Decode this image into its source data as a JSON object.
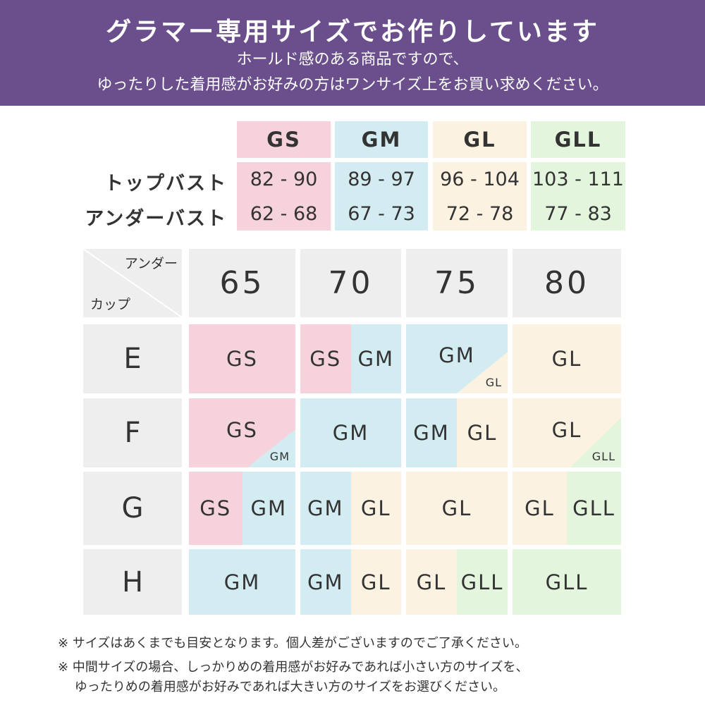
{
  "banner": {
    "title": "グラマー専用サイズでお作りしています",
    "line1": "ホールド感のある商品ですので、",
    "line2": "ゆったりした着用感がお好みの方はワンサイズ上をお買い求めください。"
  },
  "colors": {
    "banner": "#6a4f8c",
    "GS": "#f6d3dc",
    "GM": "#d3ecf1",
    "GL": "#fcf2e2",
    "GLL": "#e3f5dc",
    "header": "#eeeeee"
  },
  "size_table": {
    "row_labels": [
      "トップバスト",
      "アンダーバスト"
    ],
    "columns": [
      {
        "size": "GS",
        "top": "82 - 90",
        "under": "62 - 68"
      },
      {
        "size": "GM",
        "top": "89 - 97",
        "under": "67 - 73"
      },
      {
        "size": "GL",
        "top": "96 - 104",
        "under": "72 - 78"
      },
      {
        "size": "GLL",
        "top": "103 - 111",
        "under": "77 - 83"
      }
    ]
  },
  "chart": {
    "corner_under": "アンダー",
    "corner_cup": "カップ",
    "unders": [
      "65",
      "70",
      "75",
      "80"
    ],
    "rows": [
      {
        "cup": "E",
        "cells": [
          {
            "split": [
              "GS"
            ]
          },
          {
            "split": [
              "GS",
              "GM"
            ]
          },
          {
            "main": "GM",
            "corner": "GL"
          },
          {
            "split": [
              "GL"
            ]
          }
        ]
      },
      {
        "cup": "F",
        "cells": [
          {
            "main": "GS",
            "corner": "GM"
          },
          {
            "split": [
              "GM"
            ]
          },
          {
            "split": [
              "GM",
              "GL"
            ]
          },
          {
            "main": "GL",
            "corner": "GLL"
          }
        ]
      },
      {
        "cup": "G",
        "cells": [
          {
            "split": [
              "GS",
              "GM"
            ]
          },
          {
            "split": [
              "GM",
              "GL"
            ]
          },
          {
            "split": [
              "GL"
            ]
          },
          {
            "split": [
              "GL",
              "GLL"
            ]
          }
        ]
      },
      {
        "cup": "H",
        "cells": [
          {
            "split": [
              "GM"
            ]
          },
          {
            "split": [
              "GM",
              "GL"
            ]
          },
          {
            "split": [
              "GL",
              "GLL"
            ]
          },
          {
            "split": [
              "GLL"
            ]
          }
        ]
      }
    ]
  },
  "notes": [
    "※ サイズはあくまでも目安となります。個人差がございますのでご了承ください。",
    "※ 中間サイズの場合、しっかりめの着用感がお好みであれば小さい方のサイズを、",
    "　 ゆったりめの着用感がお好みであれば大きい方のサイズをお選びください。"
  ]
}
